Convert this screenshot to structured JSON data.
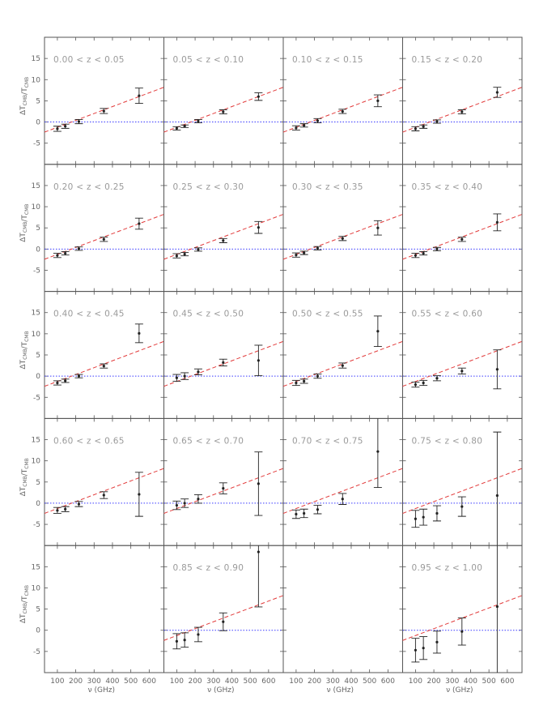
{
  "chart_data": {
    "type": "scatter",
    "ylabel": "ΔT_CMB/T_CMB",
    "ylabel_parts": {
      "delta": "Δ",
      "t1": "T",
      "sub1": "CMB",
      "slash": "/",
      "t2": "T",
      "sub2": "CMB"
    },
    "xlabel": "ν (GHz)",
    "xlim": [
      30,
      680
    ],
    "ylim": [
      -10,
      20
    ],
    "xticks": [
      100,
      200,
      300,
      400,
      500,
      600
    ],
    "yticks": [
      -5,
      0,
      5,
      10,
      15
    ],
    "frequencies": [
      100,
      143,
      217,
      353,
      545
    ],
    "model_line": {
      "style": "dashed",
      "color": "#e23b3b",
      "x": [
        30,
        680
      ],
      "y": [
        -2.4,
        8.2
      ]
    },
    "zero_line": {
      "style": "dotted",
      "color": "#3a3aff",
      "y": 0
    },
    "colors": {
      "points": "#222222",
      "frame": "#555555",
      "model": "#e23b3b",
      "zero": "#3a3aff",
      "text": "#666666",
      "panel_label": "#9a9a9a"
    },
    "panels": [
      {
        "label": "0.00 < z < 0.05",
        "points": [
          {
            "x": 100,
            "y": -1.6,
            "err": 0.6
          },
          {
            "x": 143,
            "y": -1.0,
            "err": 0.5
          },
          {
            "x": 217,
            "y": 0.1,
            "err": 0.5
          },
          {
            "x": 353,
            "y": 2.6,
            "err": 0.6
          },
          {
            "x": 545,
            "y": 6.2,
            "err": 1.8
          }
        ]
      },
      {
        "label": "0.05 < z < 0.10",
        "points": [
          {
            "x": 100,
            "y": -1.5,
            "err": 0.4
          },
          {
            "x": 143,
            "y": -1.0,
            "err": 0.3
          },
          {
            "x": 217,
            "y": 0.2,
            "err": 0.4
          },
          {
            "x": 353,
            "y": 2.4,
            "err": 0.5
          },
          {
            "x": 545,
            "y": 6.0,
            "err": 0.9
          }
        ]
      },
      {
        "label": "0.10 < z < 0.15",
        "points": [
          {
            "x": 100,
            "y": -1.4,
            "err": 0.5
          },
          {
            "x": 143,
            "y": -0.8,
            "err": 0.4
          },
          {
            "x": 217,
            "y": 0.3,
            "err": 0.5
          },
          {
            "x": 353,
            "y": 2.5,
            "err": 0.5
          },
          {
            "x": 545,
            "y": 5.0,
            "err": 1.4
          }
        ]
      },
      {
        "label": "0.15 < z < 0.20",
        "points": [
          {
            "x": 100,
            "y": -1.6,
            "err": 0.5
          },
          {
            "x": 143,
            "y": -1.1,
            "err": 0.4
          },
          {
            "x": 217,
            "y": 0.1,
            "err": 0.4
          },
          {
            "x": 353,
            "y": 2.4,
            "err": 0.5
          },
          {
            "x": 545,
            "y": 7.0,
            "err": 1.2
          }
        ]
      },
      {
        "label": "0.20 < z < 0.25",
        "points": [
          {
            "x": 100,
            "y": -1.5,
            "err": 0.5
          },
          {
            "x": 143,
            "y": -1.0,
            "err": 0.4
          },
          {
            "x": 217,
            "y": 0.1,
            "err": 0.4
          },
          {
            "x": 353,
            "y": 2.3,
            "err": 0.5
          },
          {
            "x": 545,
            "y": 6.0,
            "err": 1.3
          }
        ]
      },
      {
        "label": "0.25 < z < 0.30",
        "points": [
          {
            "x": 100,
            "y": -1.6,
            "err": 0.5
          },
          {
            "x": 143,
            "y": -1.2,
            "err": 0.4
          },
          {
            "x": 217,
            "y": -0.1,
            "err": 0.4
          },
          {
            "x": 353,
            "y": 2.0,
            "err": 0.5
          },
          {
            "x": 545,
            "y": 5.1,
            "err": 1.4
          }
        ]
      },
      {
        "label": "0.30 < z < 0.35",
        "points": [
          {
            "x": 100,
            "y": -1.4,
            "err": 0.5
          },
          {
            "x": 143,
            "y": -0.9,
            "err": 0.4
          },
          {
            "x": 217,
            "y": 0.2,
            "err": 0.4
          },
          {
            "x": 353,
            "y": 2.5,
            "err": 0.5
          },
          {
            "x": 545,
            "y": 5.0,
            "err": 1.7
          }
        ]
      },
      {
        "label": "0.35 < z < 0.40",
        "points": [
          {
            "x": 100,
            "y": -1.5,
            "err": 0.5
          },
          {
            "x": 143,
            "y": -1.0,
            "err": 0.4
          },
          {
            "x": 217,
            "y": 0.0,
            "err": 0.4
          },
          {
            "x": 353,
            "y": 2.3,
            "err": 0.5
          },
          {
            "x": 545,
            "y": 6.3,
            "err": 2.0
          }
        ]
      },
      {
        "label": "0.40 < z < 0.45",
        "points": [
          {
            "x": 100,
            "y": -1.6,
            "err": 0.5
          },
          {
            "x": 143,
            "y": -1.1,
            "err": 0.4
          },
          {
            "x": 217,
            "y": 0.0,
            "err": 0.4
          },
          {
            "x": 353,
            "y": 2.4,
            "err": 0.5
          },
          {
            "x": 545,
            "y": 10.1,
            "err": 2.2
          }
        ]
      },
      {
        "label": "0.45 < z < 0.50",
        "points": [
          {
            "x": 100,
            "y": -0.4,
            "err": 0.8
          },
          {
            "x": 143,
            "y": 0.0,
            "err": 0.8
          },
          {
            "x": 217,
            "y": 1.0,
            "err": 0.7
          },
          {
            "x": 353,
            "y": 3.2,
            "err": 0.8
          },
          {
            "x": 545,
            "y": 3.7,
            "err": 3.6
          }
        ]
      },
      {
        "label": "0.50 < z < 0.55",
        "points": [
          {
            "x": 100,
            "y": -1.6,
            "err": 0.6
          },
          {
            "x": 143,
            "y": -1.2,
            "err": 0.5
          },
          {
            "x": 217,
            "y": 0.0,
            "err": 0.5
          },
          {
            "x": 353,
            "y": 2.5,
            "err": 0.6
          },
          {
            "x": 545,
            "y": 10.6,
            "err": 3.6
          }
        ]
      },
      {
        "label": "0.55 < z < 0.60",
        "points": [
          {
            "x": 100,
            "y": -2.0,
            "err": 0.6
          },
          {
            "x": 143,
            "y": -1.6,
            "err": 0.6
          },
          {
            "x": 217,
            "y": -0.5,
            "err": 0.6
          },
          {
            "x": 353,
            "y": 1.2,
            "err": 0.7
          },
          {
            "x": 545,
            "y": 1.6,
            "err": 4.6
          }
        ]
      },
      {
        "label": "0.60 < z < 0.65",
        "points": [
          {
            "x": 100,
            "y": -1.7,
            "err": 0.7
          },
          {
            "x": 143,
            "y": -1.4,
            "err": 0.6
          },
          {
            "x": 217,
            "y": -0.2,
            "err": 0.6
          },
          {
            "x": 353,
            "y": 1.9,
            "err": 0.8
          },
          {
            "x": 545,
            "y": 2.1,
            "err": 5.2
          }
        ]
      },
      {
        "label": "0.65 < z < 0.70",
        "points": [
          {
            "x": 100,
            "y": -0.5,
            "err": 1.0
          },
          {
            "x": 143,
            "y": 0.0,
            "err": 1.0
          },
          {
            "x": 217,
            "y": 1.0,
            "err": 1.0
          },
          {
            "x": 353,
            "y": 3.5,
            "err": 1.3
          },
          {
            "x": 545,
            "y": 4.6,
            "err": 7.5
          }
        ]
      },
      {
        "label": "0.70 < z < 0.75",
        "points": [
          {
            "x": 100,
            "y": -2.6,
            "err": 1.0
          },
          {
            "x": 143,
            "y": -2.4,
            "err": 1.0
          },
          {
            "x": 217,
            "y": -1.5,
            "err": 1.0
          },
          {
            "x": 353,
            "y": 1.0,
            "err": 1.3
          },
          {
            "x": 545,
            "y": 12.2,
            "err": 8.5
          }
        ]
      },
      {
        "label": "0.75 < z < 0.80",
        "points": [
          {
            "x": 100,
            "y": -3.7,
            "err": 2.0
          },
          {
            "x": 143,
            "y": -3.3,
            "err": 1.9
          },
          {
            "x": 217,
            "y": -2.4,
            "err": 1.8
          },
          {
            "x": 353,
            "y": -0.8,
            "err": 2.3
          },
          {
            "x": 545,
            "y": 1.8,
            "err": 15.0
          }
        ]
      },
      {
        "label": "",
        "points": []
      },
      {
        "label": "0.85 < z < 0.90",
        "points": [
          {
            "x": 100,
            "y": -2.6,
            "err": 1.8
          },
          {
            "x": 143,
            "y": -2.3,
            "err": 1.7
          },
          {
            "x": 217,
            "y": -1.0,
            "err": 1.7
          },
          {
            "x": 353,
            "y": 2.0,
            "err": 2.1
          },
          {
            "x": 545,
            "y": 18.5,
            "err": 13.0
          }
        ]
      },
      {
        "label": "",
        "points": []
      },
      {
        "label": "0.95 < z < 1.00",
        "points": [
          {
            "x": 100,
            "y": -4.7,
            "err": 2.8
          },
          {
            "x": 143,
            "y": -4.2,
            "err": 2.7
          },
          {
            "x": 217,
            "y": -2.8,
            "err": 2.6
          },
          {
            "x": 353,
            "y": -0.3,
            "err": 3.2
          },
          {
            "x": 545,
            "y": 5.6,
            "err": 19.5
          }
        ]
      }
    ]
  }
}
